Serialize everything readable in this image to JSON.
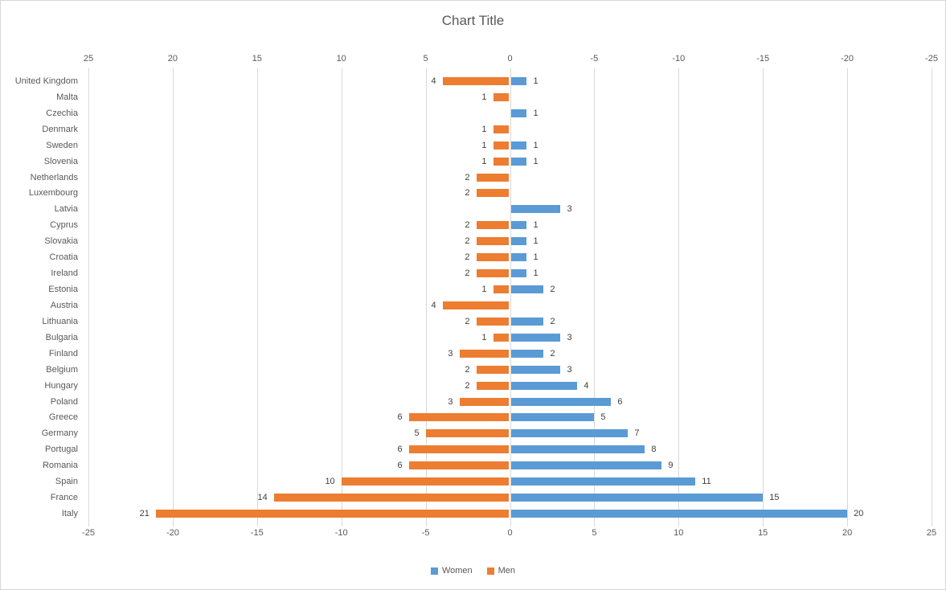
{
  "chart_data": {
    "type": "bar",
    "variant": "diverging-horizontal-tornado",
    "title": "Chart Title",
    "categories": [
      "United Kingdom",
      "Malta",
      "Czechia",
      "Denmark",
      "Sweden",
      "Slovenia",
      "Netherlands",
      "Luxembourg",
      "Latvia",
      "Cyprus",
      "Slovakia",
      "Croatia",
      "Ireland",
      "Estonia",
      "Austria",
      "Lithuania",
      "Bulgaria",
      "Finland",
      "Belgium",
      "Hungary",
      "Poland",
      "Greece",
      "Germany",
      "Portugal",
      "Romania",
      "Spain",
      "France",
      "Italy"
    ],
    "series": [
      {
        "name": "Women",
        "color": "#5B9BD5",
        "side": "right",
        "values": [
          1,
          null,
          1,
          null,
          1,
          1,
          null,
          null,
          3,
          1,
          1,
          1,
          1,
          2,
          null,
          2,
          3,
          2,
          3,
          4,
          6,
          5,
          7,
          8,
          9,
          11,
          15,
          20
        ]
      },
      {
        "name": "Men",
        "color": "#ED7D31",
        "side": "left",
        "values": [
          4,
          1,
          null,
          1,
          1,
          1,
          2,
          2,
          null,
          2,
          2,
          2,
          2,
          1,
          4,
          2,
          1,
          3,
          2,
          2,
          3,
          6,
          5,
          6,
          6,
          10,
          14,
          21
        ]
      }
    ],
    "top_axis_ticks": [
      25,
      20,
      15,
      10,
      5,
      0,
      -5,
      -10,
      -15,
      -20,
      -25
    ],
    "bottom_axis_ticks": [
      -25,
      -20,
      -15,
      -10,
      -5,
      0,
      5,
      10,
      15,
      20,
      25
    ],
    "xlim": [
      -25,
      25
    ],
    "grid": "vertical-gridlines",
    "data_labels": "outside-end",
    "legend_position": "bottom",
    "colors": {
      "gridline": "#D9D9D9",
      "axis_text": "#595959",
      "data_label_text": "#404040",
      "title_text": "#595959",
      "border": "#D9D9D9"
    }
  }
}
